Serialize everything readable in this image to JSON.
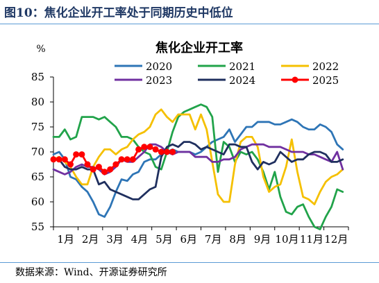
{
  "figure": {
    "title": "图10：焦化企业开工率处于同期历史中低位",
    "source": "数据来源：Wind、开源证券研究所"
  },
  "chart_data": {
    "type": "line",
    "title": "焦化企业开工率",
    "ylabel": "%",
    "ylim": [
      55,
      85
    ],
    "yticks": [
      55,
      60,
      65,
      70,
      75,
      80,
      85
    ],
    "x_unit": "week",
    "xlim": [
      1,
      53
    ],
    "categories": [
      "1月",
      "2月",
      "3月",
      "4月",
      "5月",
      "6月",
      "7月",
      "8月",
      "9月",
      "10月",
      "11月",
      "12月"
    ],
    "grid": false,
    "legend": "top, 3 columns",
    "series": [
      {
        "name": "2020",
        "color": "#2e75b6",
        "marker": "none",
        "x": [
          1,
          2,
          3,
          4,
          5,
          6,
          7,
          8,
          9,
          10,
          11,
          12,
          13,
          14,
          15,
          16,
          17,
          18,
          19,
          20,
          21,
          22,
          23,
          24,
          25,
          26,
          27,
          28,
          29,
          30,
          31,
          32,
          33,
          34,
          35,
          36,
          37,
          38,
          39,
          40,
          41,
          42,
          43,
          44,
          45,
          46,
          47,
          48,
          49,
          50,
          51,
          52
        ],
        "y": [
          69.5,
          70,
          68.5,
          65,
          64.5,
          63,
          62,
          60,
          57.5,
          57,
          59,
          62,
          64.5,
          64.2,
          65.5,
          66,
          68,
          68.5,
          68.5,
          69.5,
          70,
          70.5,
          70,
          70,
          70,
          69.5,
          70,
          71,
          72,
          72.5,
          73,
          74.5,
          72,
          73.5,
          75,
          75,
          76,
          76,
          76,
          75.5,
          75.5,
          76,
          76.5,
          76,
          75,
          74.5,
          74.5,
          75.5,
          75,
          74,
          71.5,
          70.5
        ]
      },
      {
        "name": "2021",
        "color": "#21a34a",
        "marker": "none",
        "x": [
          1,
          2,
          3,
          4,
          5,
          6,
          7,
          8,
          9,
          10,
          11,
          12,
          13,
          14,
          15,
          16,
          17,
          18,
          19,
          20,
          21,
          22,
          23,
          24,
          25,
          26,
          27,
          28,
          29,
          30,
          31,
          32,
          33,
          34,
          35,
          36,
          37,
          38,
          39,
          40,
          41,
          42,
          43,
          44,
          45,
          46,
          47,
          48,
          49,
          50,
          51,
          52
        ],
        "y": [
          73,
          73,
          74.5,
          72.5,
          73,
          77,
          77,
          77,
          76.5,
          77,
          76,
          75,
          73,
          73,
          72.5,
          71,
          70,
          69.5,
          67,
          66.5,
          70,
          74,
          77,
          78,
          78.5,
          79,
          79.5,
          79,
          77,
          66,
          72,
          71,
          68,
          70,
          69.5,
          70,
          68.5,
          66,
          62.5,
          66,
          61,
          58,
          57.5,
          59,
          59.5,
          57,
          55,
          54.5,
          57,
          59,
          62.5,
          62
        ]
      },
      {
        "name": "2022",
        "color": "#f5c000",
        "marker": "none",
        "x": [
          1,
          2,
          3,
          4,
          5,
          6,
          7,
          8,
          9,
          10,
          11,
          12,
          13,
          14,
          15,
          16,
          17,
          18,
          19,
          20,
          21,
          22,
          23,
          24,
          25,
          26,
          27,
          28,
          29,
          30,
          31,
          32,
          33,
          34,
          35,
          36,
          37,
          38,
          39,
          40,
          41,
          42,
          43,
          44,
          45,
          46,
          47,
          48,
          49,
          50,
          51,
          52
        ],
        "y": [
          68.5,
          69,
          68,
          67,
          65,
          63.5,
          63.5,
          67,
          69,
          70.5,
          70.5,
          69.5,
          70.5,
          71,
          72.5,
          73.5,
          74,
          75,
          77.5,
          78.5,
          77,
          76,
          77.5,
          77.5,
          77.5,
          74.5,
          77.5,
          74.5,
          68,
          61.5,
          60,
          60,
          67.5,
          72,
          73,
          73,
          71,
          65,
          62,
          63,
          63.5,
          67,
          72.5,
          66,
          61,
          60.5,
          59.5,
          62,
          64,
          65,
          65.5,
          66.5
        ]
      },
      {
        "name": "2023",
        "color": "#7030a0",
        "marker": "none",
        "x": [
          1,
          2,
          3,
          4,
          5,
          6,
          7,
          8,
          9,
          10,
          11,
          12,
          13,
          14,
          15,
          16,
          17,
          18,
          19,
          20,
          21,
          22,
          23,
          24,
          25,
          26,
          27,
          28,
          29,
          30,
          31,
          32,
          33,
          34,
          35,
          36,
          37,
          38,
          39,
          40,
          41,
          42,
          43,
          44,
          45,
          46,
          47,
          48,
          49,
          50,
          51,
          52
        ],
        "y": [
          66.5,
          66,
          65.5,
          66,
          67,
          67.5,
          67,
          67,
          66.5,
          65.5,
          66,
          67,
          68.5,
          68,
          68,
          69,
          70,
          71.5,
          71.5,
          71,
          70,
          69.5,
          70,
          70,
          70,
          69,
          69,
          69,
          68,
          68,
          68.5,
          68.5,
          69,
          70.5,
          71,
          71.5,
          71.5,
          71.5,
          71,
          71,
          71,
          70.5,
          70,
          70,
          70,
          69.5,
          69.5,
          69,
          68.5,
          68,
          70,
          66.5
        ]
      },
      {
        "name": "2024",
        "color": "#1f2f5e",
        "marker": "none",
        "x": [
          1,
          2,
          3,
          4,
          5,
          6,
          7,
          8,
          9,
          10,
          11,
          12,
          13,
          14,
          15,
          16,
          17,
          18,
          19,
          20,
          21,
          22,
          23,
          24,
          25,
          26,
          27,
          28,
          29,
          30,
          31,
          32,
          33,
          34,
          35,
          36,
          37,
          38,
          39,
          40,
          41,
          42,
          43,
          44,
          45,
          46,
          47,
          48,
          49,
          50,
          51,
          52
        ],
        "y": [
          68.5,
          68.5,
          67,
          66.5,
          66.5,
          67,
          66.5,
          66.5,
          63.5,
          64,
          62.5,
          62,
          61.5,
          61,
          60.5,
          60.5,
          61.5,
          62.5,
          63,
          69,
          71,
          71.5,
          71,
          72,
          72,
          71.5,
          70.5,
          71,
          70.5,
          70,
          69.5,
          71.5,
          71.5,
          71,
          71,
          68,
          66.5,
          68,
          67.5,
          68,
          70,
          69,
          68,
          68.5,
          68.5,
          69.5,
          70,
          70,
          69.5,
          68,
          68,
          68.5
        ]
      },
      {
        "name": "2025",
        "color": "#ff0000",
        "marker": "circle",
        "x": [
          1,
          2,
          3,
          4,
          5,
          6,
          7,
          8,
          9,
          10,
          11,
          12,
          13,
          14,
          15,
          16,
          17,
          18,
          19,
          20,
          21,
          22
        ],
        "y": [
          68.5,
          68.5,
          68.5,
          67.5,
          69.5,
          69.5,
          67.5,
          66.5,
          67,
          66,
          66.5,
          67.5,
          68.5,
          68.5,
          68.5,
          70.5,
          71,
          71,
          70.5,
          70,
          70,
          70
        ]
      }
    ]
  }
}
